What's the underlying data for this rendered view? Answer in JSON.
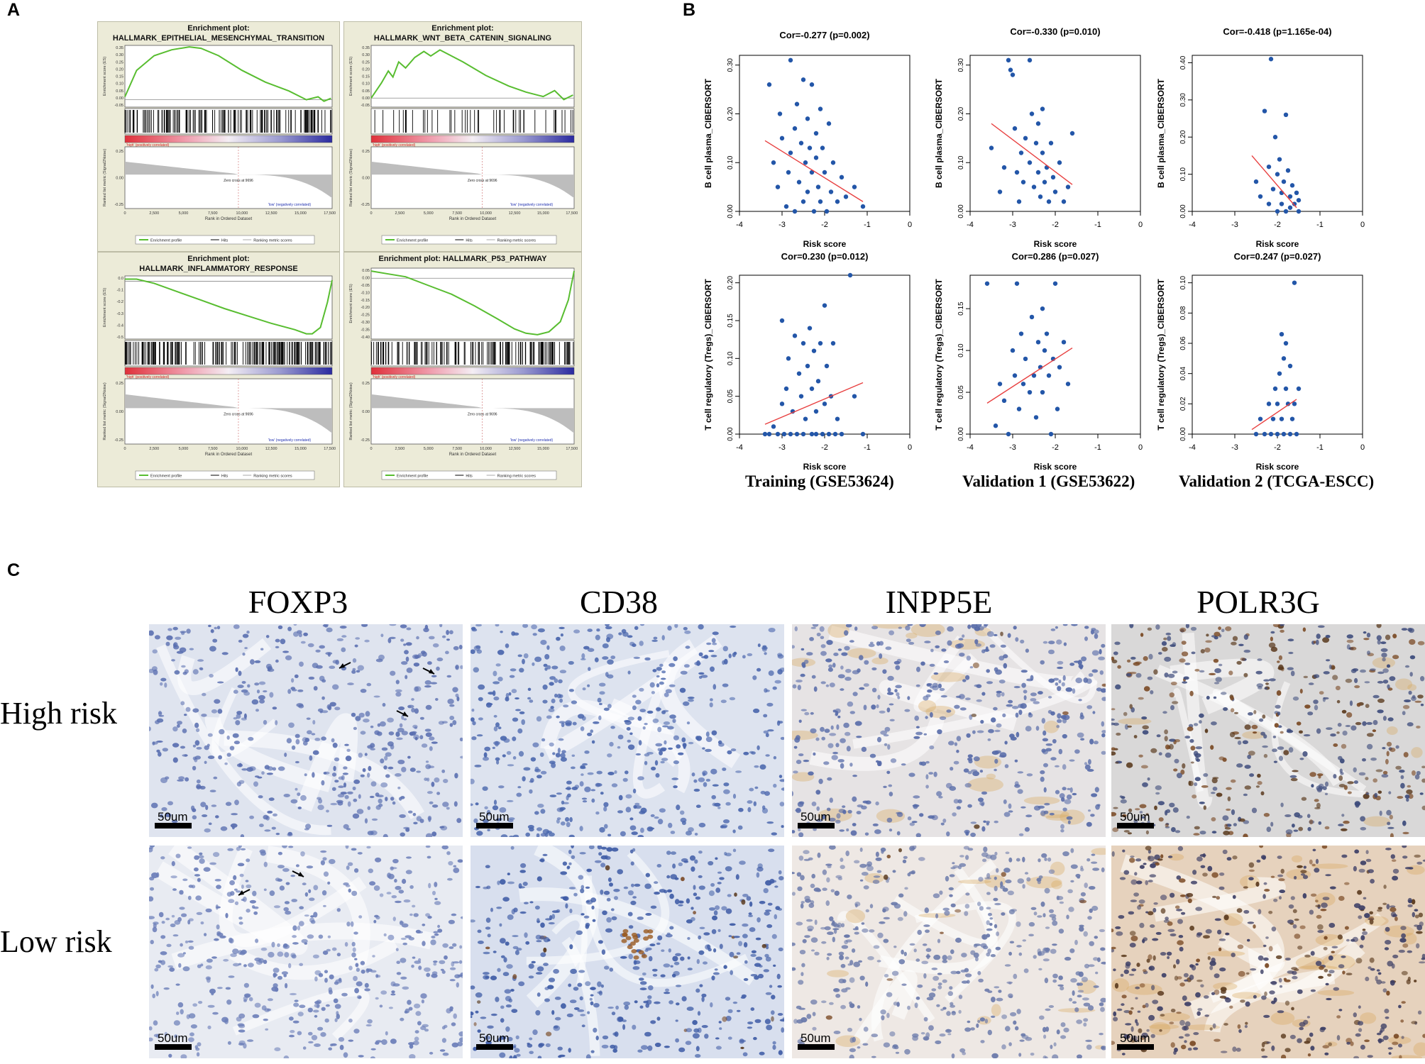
{
  "panels": {
    "a": "A",
    "b": "B",
    "c": "C"
  },
  "gsea_common": {
    "ylabel_es": "Enrichment score (ES)",
    "ylabel_metric": "Ranked list metric (Signal2Noise)",
    "xlabel": "Rank in Ordered Dataset",
    "zero_cross": "Zero cross at 9696",
    "high_label": "'high' (positively correlated)",
    "low_label": "'low' (negatively correlated)",
    "legend": [
      "Enrichment profile",
      "Hits",
      "Ranking metric scores"
    ],
    "xticks": [
      "0",
      "2,500",
      "5,000",
      "7,500",
      "10,000",
      "12,500",
      "15,000",
      "17,500"
    ],
    "metric_ticks": [
      "0.25",
      "0.00",
      "-0.25"
    ]
  },
  "gsea_plots": [
    {
      "title_line1": "Enrichment plot:",
      "title_line2": "HALLMARK_EPITHELIAL_MESENCHYMAL_TRANSITION",
      "es_ticks": [
        "0.35",
        "0.30",
        "0.25",
        "0.20",
        "0.15",
        "0.10",
        "0.05",
        "0.00",
        "-0.05"
      ]
    },
    {
      "title_line1": "Enrichment plot:",
      "title_line2": "HALLMARK_WNT_BETA_CATENIN_SIGNALING",
      "es_ticks": [
        "0.35",
        "0.30",
        "0.25",
        "0.20",
        "0.15",
        "0.10",
        "0.05",
        "0.00",
        "-0.05"
      ]
    },
    {
      "title_line1": "Enrichment plot:",
      "title_line2": "HALLMARK_INFLAMMATORY_RESPONSE",
      "es_ticks": [
        "0.0",
        "-0.1",
        "-0.2",
        "-0.3",
        "-0.4",
        "-0.5"
      ]
    },
    {
      "title_line1": "Enrichment plot: HALLMARK_P53_PATHWAY",
      "title_line2": "",
      "es_ticks": [
        "0.05",
        "0.00",
        "-0.05",
        "-0.10",
        "-0.15",
        "-0.20",
        "-0.25",
        "-0.30",
        "-0.35",
        "-0.40"
      ]
    }
  ],
  "chart_data": [
    {
      "type": "line",
      "title": "Enrichment plot: HALLMARK_EPITHELIAL_MESENCHYMAL_TRANSITION",
      "xlabel": "Rank in Ordered Dataset",
      "ylabel": "Enrichment score (ES)",
      "ylim": [
        -0.05,
        0.37
      ],
      "x": [
        0,
        1000,
        2500,
        4000,
        5500,
        6500,
        8000,
        10000,
        12000,
        14000,
        15500,
        16500,
        17000,
        17600
      ],
      "y": [
        0.02,
        0.2,
        0.3,
        0.34,
        0.36,
        0.35,
        0.3,
        0.2,
        0.12,
        0.06,
        0.0,
        0.02,
        -0.01,
        0.01
      ]
    },
    {
      "type": "line",
      "title": "Enrichment plot: HALLMARK_WNT_BETA_CATENIN_SIGNALING",
      "xlabel": "Rank in Ordered Dataset",
      "ylabel": "Enrichment score (ES)",
      "ylim": [
        -0.06,
        0.35
      ],
      "x": [
        0,
        900,
        1500,
        1900,
        2400,
        3000,
        3800,
        4600,
        5200,
        6000,
        8000,
        10000,
        12000,
        13500,
        15000,
        16000,
        16800,
        17600
      ],
      "y": [
        0.0,
        0.1,
        0.18,
        0.14,
        0.24,
        0.2,
        0.27,
        0.31,
        0.28,
        0.32,
        0.24,
        0.15,
        0.08,
        0.04,
        0.01,
        0.05,
        -0.01,
        0.02
      ]
    },
    {
      "type": "line",
      "title": "Enrichment plot: HALLMARK_INFLAMMATORY_RESPONSE",
      "xlabel": "Rank in Ordered Dataset",
      "ylabel": "Enrichment score (ES)",
      "ylim": [
        -0.55,
        0.05
      ],
      "x": [
        0,
        1000,
        2500,
        4500,
        6500,
        8500,
        10500,
        12500,
        14500,
        15500,
        16000,
        16700,
        17300,
        17700
      ],
      "y": [
        0.02,
        0.02,
        -0.02,
        -0.1,
        -0.18,
        -0.26,
        -0.33,
        -0.4,
        -0.46,
        -0.5,
        -0.5,
        -0.44,
        -0.2,
        0.01
      ]
    },
    {
      "type": "line",
      "title": "Enrichment plot: HALLMARK_P53_PATHWAY",
      "xlabel": "Rank in Ordered Dataset",
      "ylabel": "Enrichment score (ES)",
      "ylim": [
        -0.42,
        0.07
      ],
      "x": [
        0,
        1500,
        3000,
        5000,
        7000,
        9000,
        11000,
        12500,
        13500,
        14500,
        15500,
        16500,
        17200,
        17700
      ],
      "y": [
        0.05,
        0.03,
        0.01,
        -0.05,
        -0.11,
        -0.19,
        -0.28,
        -0.35,
        -0.38,
        -0.39,
        -0.37,
        -0.3,
        -0.15,
        0.05
      ]
    },
    {
      "type": "scatter",
      "title": "Cor=-0.277 (p=0.002)",
      "xlabel": "Risk score",
      "ylabel": "B cell plasma_CIBERSORT",
      "xlim": [
        -4,
        0
      ],
      "ylim": [
        0,
        0.32
      ],
      "xticks": [
        -4,
        -3,
        -2,
        -1,
        0
      ],
      "yticks": [
        0.0,
        0.1,
        0.2,
        0.3
      ],
      "fit": [
        [
          -3.4,
          0.145
        ],
        [
          -1.1,
          0.02
        ]
      ],
      "points": [
        [
          -3.3,
          0.26
        ],
        [
          -3.2,
          0.1
        ],
        [
          -3.1,
          0.05
        ],
        [
          -3.05,
          0.2
        ],
        [
          -3.0,
          0.15
        ],
        [
          -2.9,
          0.01
        ],
        [
          -2.85,
          0.08
        ],
        [
          -2.8,
          0.31
        ],
        [
          -2.8,
          0.12
        ],
        [
          -2.7,
          0.17
        ],
        [
          -2.7,
          0.0
        ],
        [
          -2.65,
          0.22
        ],
        [
          -2.6,
          0.06
        ],
        [
          -2.55,
          0.14
        ],
        [
          -2.5,
          0.27
        ],
        [
          -2.5,
          0.02
        ],
        [
          -2.45,
          0.1
        ],
        [
          -2.4,
          0.19
        ],
        [
          -2.4,
          0.04
        ],
        [
          -2.35,
          0.13
        ],
        [
          -2.3,
          0.26
        ],
        [
          -2.3,
          0.08
        ],
        [
          -2.25,
          0.0
        ],
        [
          -2.2,
          0.16
        ],
        [
          -2.2,
          0.11
        ],
        [
          -2.15,
          0.05
        ],
        [
          -2.1,
          0.21
        ],
        [
          -2.1,
          0.02
        ],
        [
          -2.05,
          0.13
        ],
        [
          -2.0,
          0.08
        ],
        [
          -1.95,
          0.0
        ],
        [
          -1.9,
          0.18
        ],
        [
          -1.85,
          0.04
        ],
        [
          -1.8,
          0.1
        ],
        [
          -1.7,
          0.02
        ],
        [
          -1.6,
          0.07
        ],
        [
          -1.5,
          0.03
        ],
        [
          -1.3,
          0.05
        ],
        [
          -1.1,
          0.01
        ]
      ]
    },
    {
      "type": "scatter",
      "title": "Cor=-0.330 (p=0.010)",
      "xlabel": "Risk score",
      "ylabel": "B cell plasma_CIBERSORT",
      "xlim": [
        -4,
        0
      ],
      "ylim": [
        0,
        0.32
      ],
      "xticks": [
        -4,
        -3,
        -2,
        -1,
        0
      ],
      "yticks": [
        0.0,
        0.1,
        0.2,
        0.3
      ],
      "fit": [
        [
          -3.5,
          0.18
        ],
        [
          -1.6,
          0.055
        ]
      ],
      "points": [
        [
          -3.5,
          0.13
        ],
        [
          -3.3,
          0.04
        ],
        [
          -3.2,
          0.09
        ],
        [
          -3.1,
          0.31
        ],
        [
          -3.05,
          0.29
        ],
        [
          -3.0,
          0.28
        ],
        [
          -2.95,
          0.17
        ],
        [
          -2.9,
          0.08
        ],
        [
          -2.85,
          0.02
        ],
        [
          -2.8,
          0.12
        ],
        [
          -2.75,
          0.06
        ],
        [
          -2.7,
          0.15
        ],
        [
          -2.6,
          0.31
        ],
        [
          -2.6,
          0.1
        ],
        [
          -2.55,
          0.2
        ],
        [
          -2.5,
          0.05
        ],
        [
          -2.45,
          0.14
        ],
        [
          -2.4,
          0.18
        ],
        [
          -2.4,
          0.08
        ],
        [
          -2.35,
          0.03
        ],
        [
          -2.3,
          0.12
        ],
        [
          -2.3,
          0.21
        ],
        [
          -2.25,
          0.06
        ],
        [
          -2.2,
          0.09
        ],
        [
          -2.15,
          0.02
        ],
        [
          -2.1,
          0.14
        ],
        [
          -2.05,
          0.07
        ],
        [
          -2.0,
          0.04
        ],
        [
          -1.9,
          0.1
        ],
        [
          -1.8,
          0.02
        ],
        [
          -1.7,
          0.05
        ],
        [
          -1.6,
          0.16
        ]
      ]
    },
    {
      "type": "scatter",
      "title": "Cor=-0.418 (p=1.165e-04)",
      "xlabel": "Risk score",
      "ylabel": "B cell plasma_CIBERSORT",
      "xlim": [
        -4,
        0
      ],
      "ylim": [
        0,
        0.42
      ],
      "xticks": [
        -4,
        -3,
        -2,
        -1,
        0
      ],
      "yticks": [
        0.0,
        0.1,
        0.2,
        0.3,
        0.4
      ],
      "fit": [
        [
          -2.6,
          0.15
        ],
        [
          -1.55,
          0.01
        ]
      ],
      "points": [
        [
          -2.5,
          0.08
        ],
        [
          -2.4,
          0.04
        ],
        [
          -2.3,
          0.27
        ],
        [
          -2.2,
          0.12
        ],
        [
          -2.2,
          0.02
        ],
        [
          -2.15,
          0.41
        ],
        [
          -2.1,
          0.06
        ],
        [
          -2.05,
          0.2
        ],
        [
          -2.0,
          0.1
        ],
        [
          -2.0,
          0.0
        ],
        [
          -1.95,
          0.14
        ],
        [
          -1.9,
          0.05
        ],
        [
          -1.9,
          0.02
        ],
        [
          -1.85,
          0.08
        ],
        [
          -1.8,
          0.26
        ],
        [
          -1.8,
          0.0
        ],
        [
          -1.75,
          0.11
        ],
        [
          -1.7,
          0.04
        ],
        [
          -1.7,
          0.01
        ],
        [
          -1.65,
          0.07
        ],
        [
          -1.6,
          0.02
        ],
        [
          -1.55,
          0.05
        ],
        [
          -1.5,
          0.0
        ],
        [
          -1.5,
          0.03
        ]
      ]
    },
    {
      "type": "scatter",
      "title": "Cor=0.230 (p=0.012)",
      "xlabel": "Risk score",
      "ylabel": "T cell regulatory (Tregs)_CIBERSORT",
      "xlim": [
        -4,
        0
      ],
      "ylim": [
        0,
        0.21
      ],
      "xticks": [
        -4,
        -3,
        -2,
        -1,
        0
      ],
      "yticks": [
        0.0,
        0.05,
        0.1,
        0.15,
        0.2
      ],
      "fit": [
        [
          -3.4,
          0.013
        ],
        [
          -1.1,
          0.068
        ]
      ],
      "points": [
        [
          -3.4,
          0.0
        ],
        [
          -3.3,
          0.0
        ],
        [
          -3.2,
          0.01
        ],
        [
          -3.1,
          0.0
        ],
        [
          -3.0,
          0.04
        ],
        [
          -3.0,
          0.15
        ],
        [
          -2.95,
          0.0
        ],
        [
          -2.9,
          0.06
        ],
        [
          -2.85,
          0.1
        ],
        [
          -2.8,
          0.0
        ],
        [
          -2.75,
          0.03
        ],
        [
          -2.7,
          0.13
        ],
        [
          -2.65,
          0.0
        ],
        [
          -2.6,
          0.08
        ],
        [
          -2.55,
          0.05
        ],
        [
          -2.5,
          0.12
        ],
        [
          -2.5,
          0.0
        ],
        [
          -2.45,
          0.02
        ],
        [
          -2.4,
          0.09
        ],
        [
          -2.35,
          0.14
        ],
        [
          -2.3,
          0.0
        ],
        [
          -2.3,
          0.06
        ],
        [
          -2.25,
          0.11
        ],
        [
          -2.2,
          0.03
        ],
        [
          -2.2,
          0.0
        ],
        [
          -2.15,
          0.07
        ],
        [
          -2.1,
          0.12
        ],
        [
          -2.05,
          0.0
        ],
        [
          -2.0,
          0.17
        ],
        [
          -2.0,
          0.04
        ],
        [
          -1.95,
          0.09
        ],
        [
          -1.9,
          0.0
        ],
        [
          -1.85,
          0.05
        ],
        [
          -1.8,
          0.12
        ],
        [
          -1.75,
          0.0
        ],
        [
          -1.7,
          0.02
        ],
        [
          -1.6,
          0.0
        ],
        [
          -1.4,
          0.21
        ],
        [
          -1.3,
          0.05
        ],
        [
          -1.1,
          0.0
        ]
      ]
    },
    {
      "type": "scatter",
      "title": "Cor=0.286 (p=0.027)",
      "xlabel": "Risk score",
      "ylabel": "T cell regulatory (Tregs)_CIBERSORT",
      "xlim": [
        -4,
        0
      ],
      "ylim": [
        0,
        0.19
      ],
      "xticks": [
        -4,
        -3,
        -2,
        -1,
        0
      ],
      "yticks": [
        0.0,
        0.05,
        0.1,
        0.15
      ],
      "fit": [
        [
          -3.6,
          0.037
        ],
        [
          -1.6,
          0.103
        ]
      ],
      "points": [
        [
          -3.6,
          0.18
        ],
        [
          -3.4,
          0.01
        ],
        [
          -3.3,
          0.06
        ],
        [
          -3.2,
          0.04
        ],
        [
          -3.1,
          0.0
        ],
        [
          -3.0,
          0.1
        ],
        [
          -2.95,
          0.07
        ],
        [
          -2.9,
          0.18
        ],
        [
          -2.85,
          0.03
        ],
        [
          -2.8,
          0.12
        ],
        [
          -2.75,
          0.06
        ],
        [
          -2.7,
          0.09
        ],
        [
          -2.6,
          0.05
        ],
        [
          -2.55,
          0.14
        ],
        [
          -2.5,
          0.07
        ],
        [
          -2.45,
          0.02
        ],
        [
          -2.4,
          0.11
        ],
        [
          -2.35,
          0.08
        ],
        [
          -2.3,
          0.15
        ],
        [
          -2.3,
          0.05
        ],
        [
          -2.25,
          0.1
        ],
        [
          -2.2,
          0.12
        ],
        [
          -2.15,
          0.07
        ],
        [
          -2.1,
          0.0
        ],
        [
          -2.05,
          0.09
        ],
        [
          -2.0,
          0.18
        ],
        [
          -1.95,
          0.03
        ],
        [
          -1.9,
          0.08
        ],
        [
          -1.8,
          0.11
        ],
        [
          -1.7,
          0.06
        ]
      ]
    },
    {
      "type": "scatter",
      "title": "Cor=0.247 (p=0.027)",
      "xlabel": "Risk score",
      "ylabel": "T cell regulatory (Tregs)_CIBERSORT",
      "xlim": [
        -4,
        0
      ],
      "ylim": [
        0,
        0.105
      ],
      "xticks": [
        -4,
        -3,
        -2,
        -1,
        0
      ],
      "yticks": [
        0.0,
        0.02,
        0.04,
        0.06,
        0.08,
        0.1
      ],
      "fit": [
        [
          -2.6,
          0.003
        ],
        [
          -1.55,
          0.023
        ]
      ],
      "points": [
        [
          -2.5,
          0.0
        ],
        [
          -2.4,
          0.01
        ],
        [
          -2.3,
          0.0
        ],
        [
          -2.2,
          0.02
        ],
        [
          -2.15,
          0.0
        ],
        [
          -2.1,
          0.01
        ],
        [
          -2.05,
          0.03
        ],
        [
          -2.0,
          0.0
        ],
        [
          -2.0,
          0.02
        ],
        [
          -1.95,
          0.04
        ],
        [
          -1.9,
          0.01
        ],
        [
          -1.9,
          0.066
        ],
        [
          -1.85,
          0.0
        ],
        [
          -1.85,
          0.05
        ],
        [
          -1.8,
          0.03
        ],
        [
          -1.8,
          0.06
        ],
        [
          -1.75,
          0.02
        ],
        [
          -1.7,
          0.045
        ],
        [
          -1.7,
          0.0
        ],
        [
          -1.65,
          0.01
        ],
        [
          -1.6,
          0.02
        ],
        [
          -1.6,
          0.1
        ],
        [
          -1.55,
          0.0
        ],
        [
          -1.5,
          0.03
        ]
      ]
    }
  ],
  "cohorts": [
    "Training (GSE53624)",
    "Validation 1 (GSE53622)",
    "Validation 2 (TCGA-ESCC)"
  ],
  "ihc": {
    "genes": [
      "FOXP3",
      "CD38",
      "INPP5E",
      "POLR3G"
    ],
    "rows": [
      "High risk",
      "Low risk"
    ],
    "scale": "50um"
  }
}
